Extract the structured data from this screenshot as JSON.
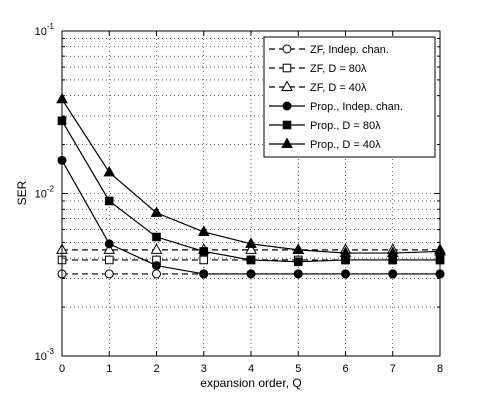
{
  "chart_data": {
    "type": "line",
    "title": "",
    "xlabel": "expansion order, Q",
    "ylabel": "SER",
    "x": [
      0,
      1,
      2,
      3,
      4,
      5,
      6,
      7,
      8
    ],
    "xlim": [
      0,
      8
    ],
    "ylim": [
      0.001,
      0.1
    ],
    "yscale": "log",
    "grid": true,
    "legend_position": "top-right",
    "x_tick_labels": [
      "0",
      "1",
      "2",
      "3",
      "4",
      "5",
      "6",
      "7",
      "8"
    ],
    "y_ticks": [
      {
        "base": "10",
        "exp": "-3",
        "value": 0.001
      },
      {
        "base": "10",
        "exp": "-2",
        "value": 0.01
      },
      {
        "base": "10",
        "exp": "-1",
        "value": 0.1
      }
    ],
    "series": [
      {
        "name": "ZF, Indep. chan.",
        "marker": "circle",
        "filled": false,
        "dashed": true,
        "values": [
          0.0032,
          0.0032,
          0.0032,
          0.0032,
          0.0032,
          0.0032,
          0.0032,
          0.0032,
          0.0032
        ]
      },
      {
        "name": "ZF, D = 80λ",
        "marker": "square",
        "filled": false,
        "dashed": true,
        "values": [
          0.0039,
          0.0039,
          0.0039,
          0.0039,
          0.0039,
          0.0039,
          0.0039,
          0.0039,
          0.0039
        ]
      },
      {
        "name": "ZF, D = 40λ",
        "marker": "triangle",
        "filled": false,
        "dashed": true,
        "values": [
          0.0045,
          0.0045,
          0.0045,
          0.0045,
          0.0045,
          0.0045,
          0.0045,
          0.0045,
          0.0045
        ]
      },
      {
        "name": "Prop., Indep. chan.",
        "marker": "circle",
        "filled": true,
        "dashed": false,
        "values": [
          0.016,
          0.0049,
          0.0036,
          0.0032,
          0.0032,
          0.0032,
          0.0032,
          0.0032,
          0.0032
        ]
      },
      {
        "name": "Prop., D = 80λ",
        "marker": "square",
        "filled": true,
        "dashed": false,
        "values": [
          0.028,
          0.009,
          0.0054,
          0.0044,
          0.0039,
          0.0038,
          0.0039,
          0.0039,
          0.0039
        ]
      },
      {
        "name": "Prop., D = 40λ",
        "marker": "triangle",
        "filled": true,
        "dashed": false,
        "values": [
          0.038,
          0.0135,
          0.0076,
          0.0058,
          0.0049,
          0.0045,
          0.0043,
          0.0043,
          0.0044
        ]
      }
    ]
  }
}
